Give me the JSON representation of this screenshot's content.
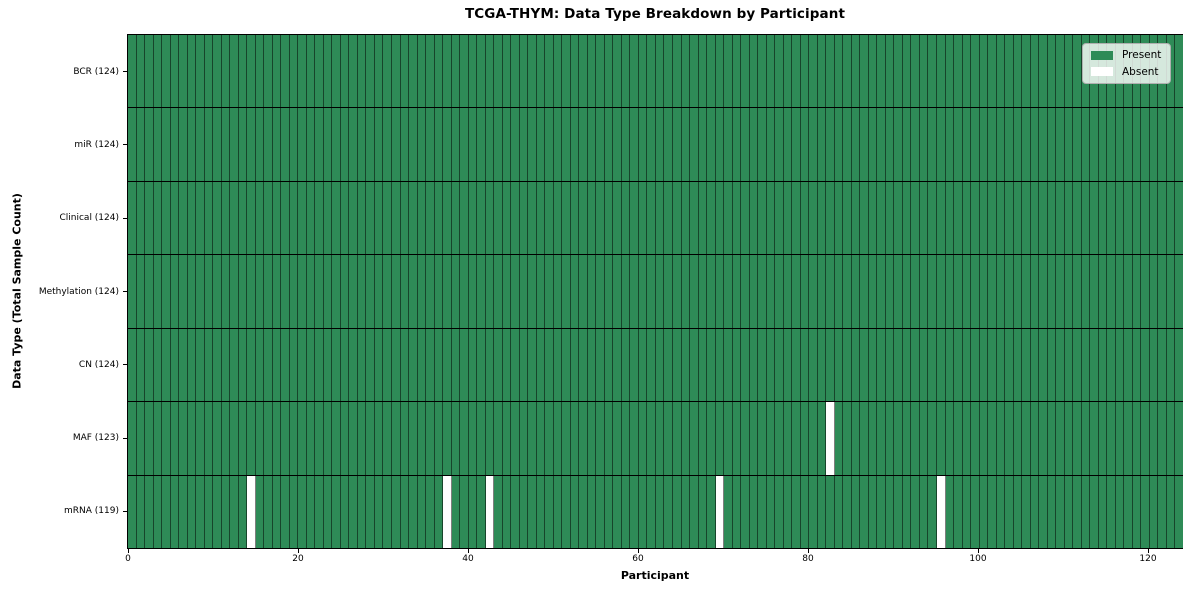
{
  "chart_data": {
    "type": "heatmap",
    "title": "TCGA-THYM: Data Type Breakdown by Participant",
    "xlabel": "Participant",
    "ylabel": "Data Type (Total Sample Count)",
    "n_participants": 124,
    "x_ticks": [
      0,
      20,
      40,
      60,
      80,
      100,
      120
    ],
    "x_range": [
      0,
      124
    ],
    "grid": "off",
    "colors": {
      "present": "#2e8b57",
      "absent": "#ffffff",
      "cell_edge": "rgba(0,0,0,0.5)",
      "row_divider": "#000000"
    },
    "legend": {
      "position": "upper-right",
      "entries": [
        {
          "label": "Present",
          "color": "#2e8b57"
        },
        {
          "label": "Absent",
          "color": "#ffffff"
        }
      ]
    },
    "rows": [
      {
        "label": "BCR (124)",
        "present_count": 124,
        "absent_participants": []
      },
      {
        "label": "miR (124)",
        "present_count": 124,
        "absent_participants": []
      },
      {
        "label": "Clinical (124)",
        "present_count": 124,
        "absent_participants": []
      },
      {
        "label": "Methylation (124)",
        "present_count": 124,
        "absent_participants": []
      },
      {
        "label": "CN (124)",
        "present_count": 124,
        "absent_participants": []
      },
      {
        "label": "MAF (123)",
        "present_count": 123,
        "absent_participants": [
          82
        ]
      },
      {
        "label": "mRNA (119)",
        "present_count": 119,
        "absent_participants": [
          14,
          37,
          42,
          69,
          95
        ]
      }
    ]
  }
}
